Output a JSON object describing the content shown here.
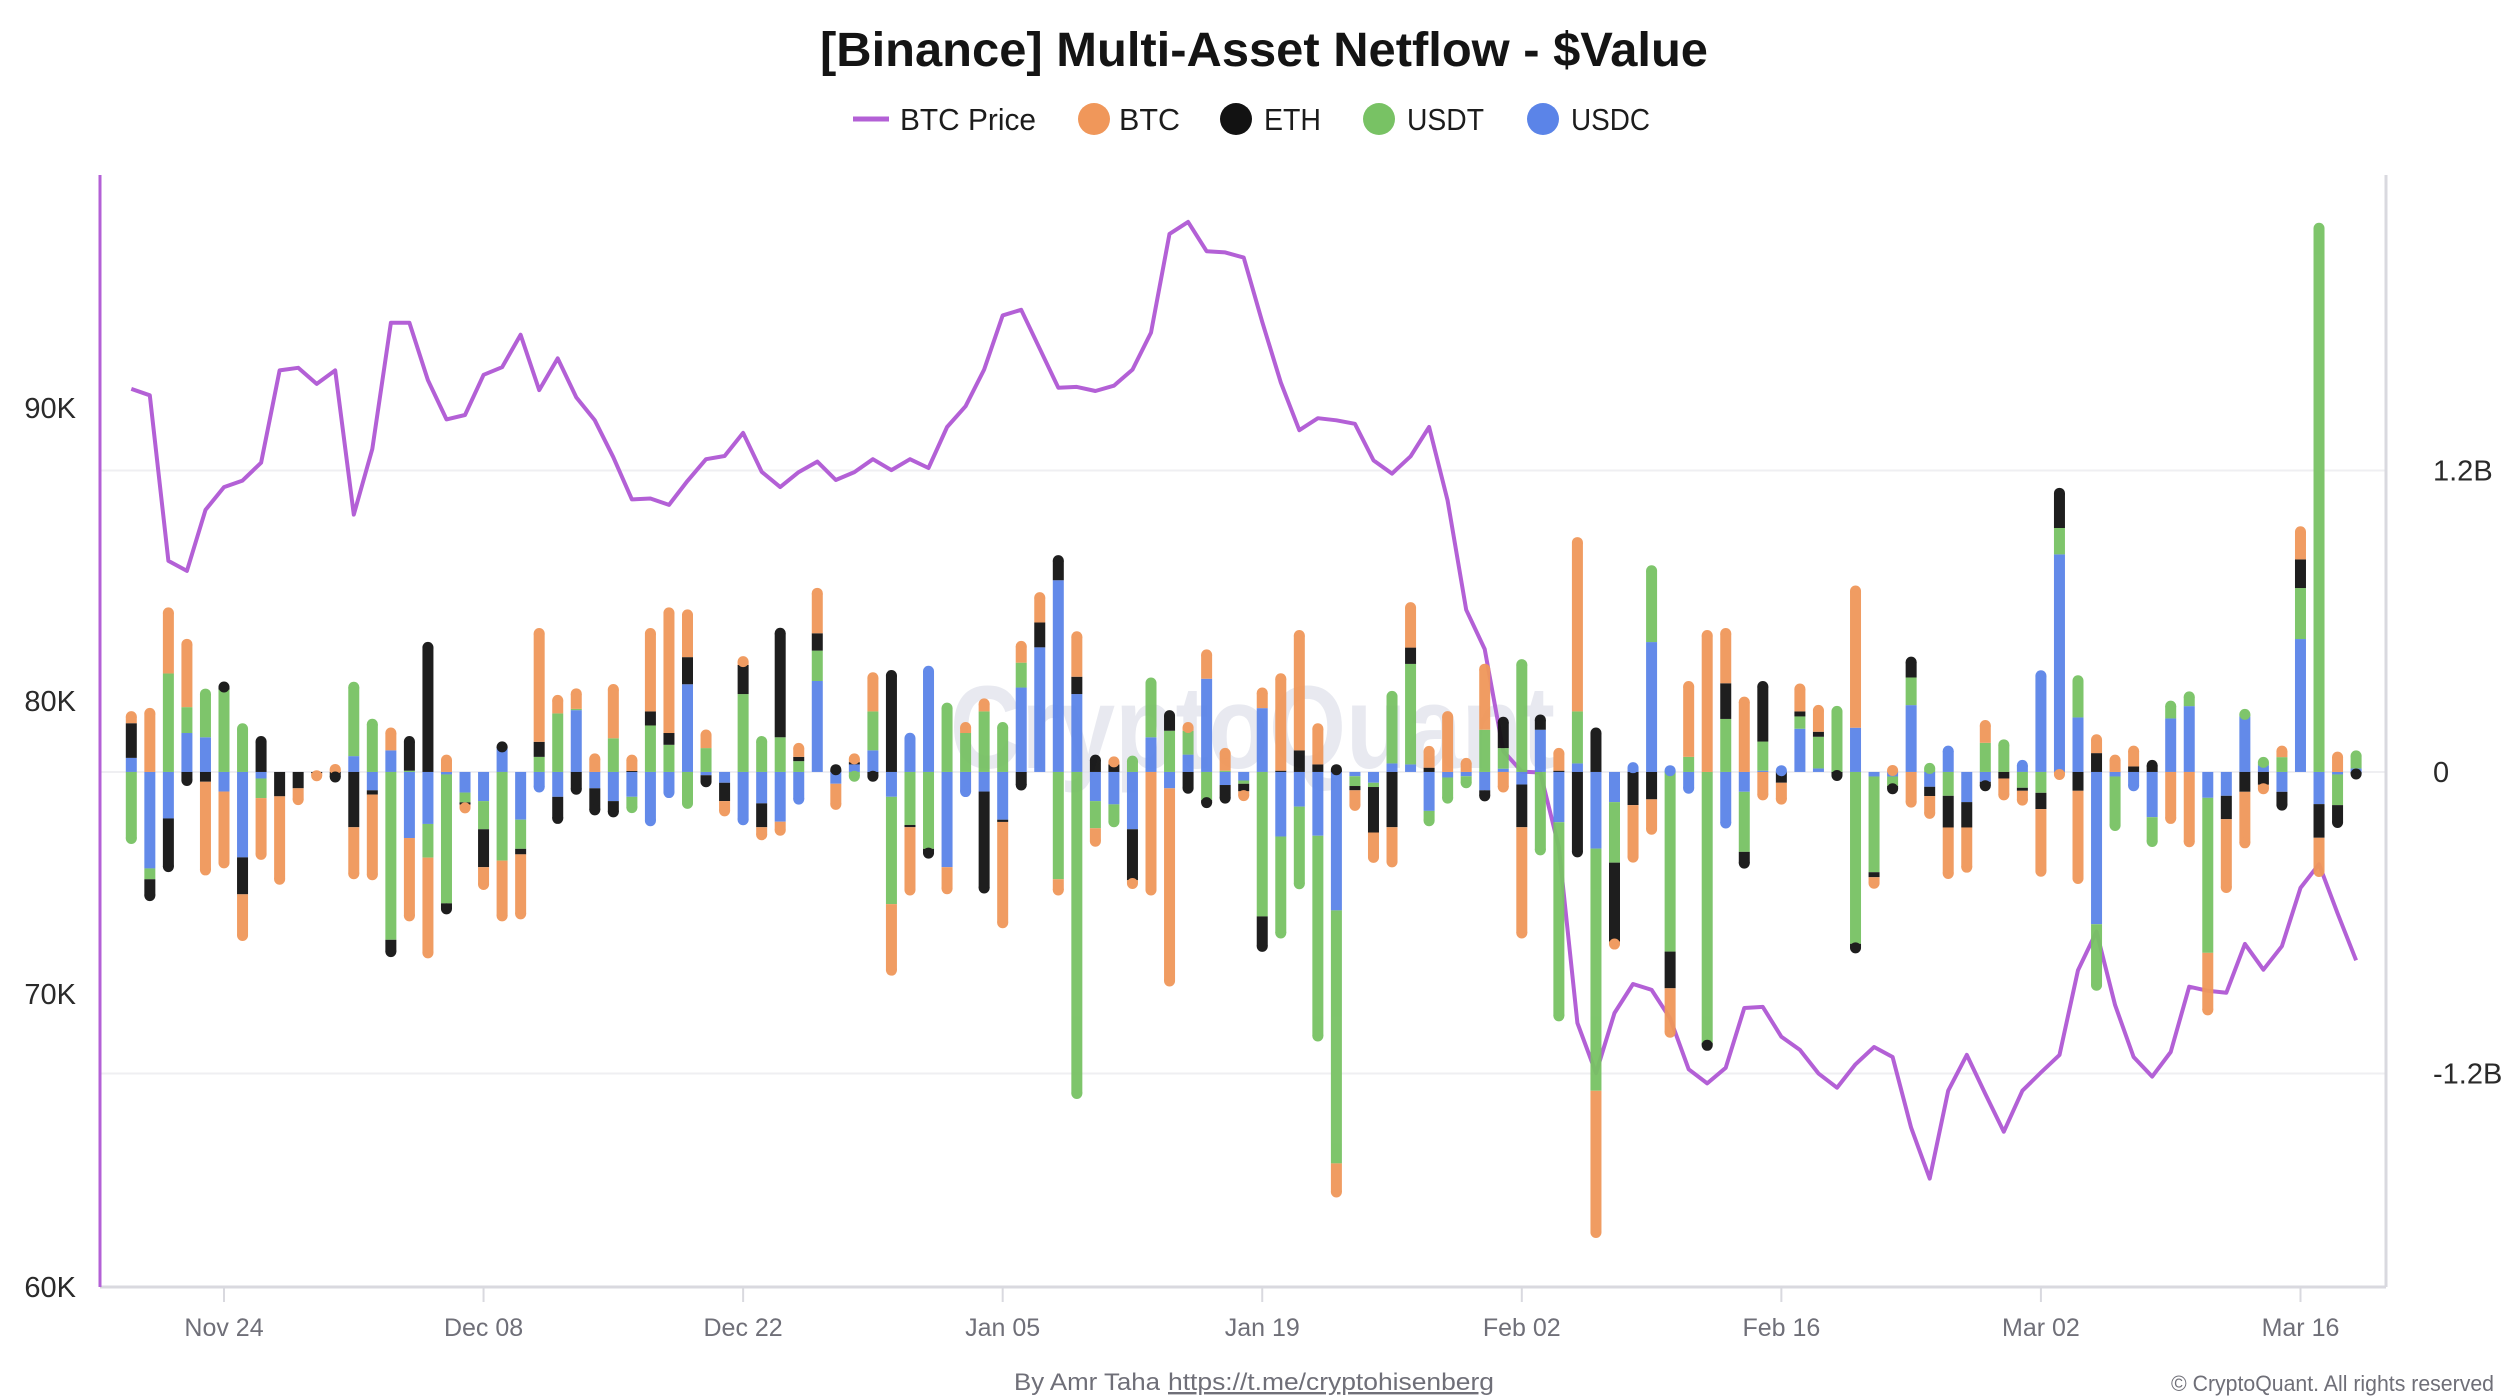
{
  "footer": {
    "author": "By Amr Taha",
    "link": "https://t.me/cryptohisenberg",
    "copyright": "© CryptoQuant. All rights reserved"
  },
  "watermark": "CryptoQuant",
  "chart_data": {
    "type": "bar",
    "subtype": "stacked-bar-with-line",
    "title": "[Binance] Multi-Asset Netflow - $Value",
    "legend_position": "top-center",
    "grid": true,
    "x_unit": "day index (daily data, first tick Nov 24 = 5)",
    "x": [
      0,
      1,
      2,
      3,
      4,
      5,
      6,
      7,
      8,
      9,
      10,
      11,
      12,
      13,
      14,
      15,
      16,
      17,
      18,
      19,
      20,
      21,
      22,
      23,
      24,
      25,
      26,
      27,
      28,
      29,
      30,
      31,
      32,
      33,
      34,
      35,
      36,
      37,
      38,
      39,
      40,
      41,
      42,
      43,
      44,
      45,
      46,
      47,
      48,
      49,
      50,
      51,
      52,
      53,
      54,
      55,
      56,
      57,
      58,
      59,
      60,
      61,
      62,
      63,
      64,
      65,
      66,
      67,
      68,
      69,
      70,
      71,
      72,
      73,
      74,
      75,
      76,
      77,
      78,
      79,
      80,
      81,
      82,
      83,
      84,
      85,
      86,
      87,
      88,
      89,
      90,
      91,
      92,
      93,
      94,
      95,
      96,
      97,
      98,
      99,
      100,
      101,
      102,
      103,
      104,
      105,
      106,
      107,
      108,
      109,
      110,
      111,
      112,
      113,
      114,
      115,
      116,
      117,
      118,
      119,
      120
    ],
    "x_ticks": [
      {
        "label": "Nov 24",
        "x": 5
      },
      {
        "label": "Dec 08",
        "x": 19
      },
      {
        "label": "Dec 22",
        "x": 33
      },
      {
        "label": "Jan 05",
        "x": 47
      },
      {
        "label": "Jan 19",
        "x": 61
      },
      {
        "label": "Feb 02",
        "x": 75
      },
      {
        "label": "Feb 16",
        "x": 89
      },
      {
        "label": "Mar 02",
        "x": 103
      },
      {
        "label": "Mar 16",
        "x": 117
      }
    ],
    "y_left": {
      "series": "BTC Price",
      "range": [
        60000,
        97950
      ],
      "ticks": [
        {
          "label": "90K",
          "value": 90000
        },
        {
          "label": "80K",
          "value": 80000
        },
        {
          "label": "70K",
          "value": 70000
        },
        {
          "label": "60K",
          "value": 60000
        }
      ]
    },
    "y_right": {
      "unit": "USD billions",
      "range": [
        -2.05,
        2.376
      ],
      "ticks": [
        {
          "label": "1.2B",
          "value": 1.2
        },
        {
          "label": "0",
          "value": 0
        },
        {
          "label": "-1.2B",
          "value": -1.2
        }
      ]
    },
    "series": [
      {
        "name": "BTC Price",
        "type": "line",
        "axis": "left",
        "color": "#b360d6",
        "values": [
          90650,
          90430,
          84780,
          84440,
          86520,
          87300,
          87520,
          88130,
          91280,
          91370,
          90820,
          91280,
          86360,
          88600,
          92910,
          92910,
          90950,
          89610,
          89760,
          91130,
          91390,
          92500,
          90610,
          91690,
          90360,
          89580,
          88320,
          86880,
          86910,
          86690,
          87510,
          88250,
          88360,
          89150,
          87820,
          87300,
          87810,
          88170,
          87540,
          87810,
          88250,
          87880,
          88250,
          87950,
          89350,
          90060,
          91310,
          93160,
          93350,
          92020,
          90690,
          90720,
          90580,
          90760,
          91310,
          92570,
          95940,
          96350,
          95350,
          95310,
          95130,
          92940,
          90870,
          89240,
          89650,
          89580,
          89460,
          88210,
          87760,
          88350,
          89350,
          86840,
          83110,
          81770,
          78290,
          77590,
          77560,
          75000,
          69010,
          67300,
          69350,
          70340,
          70140,
          69170,
          67430,
          66950,
          67480,
          69520,
          69560,
          68540,
          68090,
          67290,
          66800,
          67600,
          68190,
          67850,
          65440,
          63700,
          66700,
          67920,
          66590,
          65300,
          66700,
          67320,
          67920,
          70810,
          72130,
          69620,
          67850,
          67180,
          68020,
          70250,
          70110,
          70040,
          71710,
          70830,
          71630,
          73620,
          74430,
          72750,
          71150
        ]
      },
      {
        "name": "BTC",
        "type": "stacked-bar",
        "axis": "right",
        "color": "#f0975a",
        "values": [
          0.026,
          0.233,
          0.241,
          0.25,
          -0.351,
          -0.284,
          -0.164,
          -0.224,
          -0.33,
          -0.045,
          -0.01,
          0.01,
          -0.185,
          -0.319,
          0.069,
          -0.31,
          -0.379,
          0.047,
          -0.013,
          -0.069,
          -0.22,
          -0.237,
          0.431,
          0.052,
          0.06,
          0.052,
          0.194,
          0.043,
          0.31,
          0.478,
          0.168,
          0.052,
          -0.039,
          0.013,
          -0.03,
          -0.034,
          0.034,
          0.159,
          -0.082,
          0.013,
          0.134,
          -0.263,
          -0.25,
          0,
          -0.086,
          0.022,
          0.03,
          -0.401,
          0.065,
          0.099,
          -0.043,
          0.159,
          -0.052,
          0.01,
          -0.013,
          -0.47,
          -0.767,
          0.013,
          0.095,
          0.069,
          -0.017,
          0.06,
          0.366,
          0.457,
          0.142,
          -0.114,
          -0.06,
          -0.099,
          -0.138,
          0.159,
          0.065,
          0.22,
          0.034,
          0.241,
          -0.06,
          -0.421,
          0,
          0.069,
          0.672,
          -0.564,
          -0.01,
          -0.207,
          -0.119,
          -0.175,
          0.28,
          0.543,
          0.198,
          0.278,
          -0.091,
          -0.065,
          0.089,
          0.085,
          0,
          0.544,
          -0.024,
          0.006,
          -0.12,
          -0.069,
          -0.183,
          -0.158,
          0.069,
          -0.065,
          -0.037,
          -0.247,
          -0.01,
          -0.349,
          0.053,
          0.047,
          0.061,
          0,
          -0.185,
          -0.278,
          -0.227,
          -0.272,
          -0.203,
          -0.016,
          0.024,
          0.11,
          -0.134,
          0.059,
          0
        ]
      },
      {
        "name": "ETH",
        "type": "stacked-bar",
        "axis": "right",
        "color": "#121212",
        "values": [
          0.138,
          -0.065,
          -0.192,
          -0.034,
          -0.039,
          0.01,
          -0.147,
          0.121,
          -0.097,
          -0.065,
          -0.005,
          -0.02,
          -0.22,
          -0.017,
          -0.047,
          0.116,
          0.496,
          -0.022,
          -0.009,
          -0.151,
          0.005,
          -0.022,
          0.06,
          -0.086,
          -0.069,
          -0.086,
          -0.043,
          0.004,
          0.056,
          0.047,
          0.108,
          -0.026,
          -0.073,
          0.116,
          -0.095,
          0.414,
          0.017,
          0.069,
          0.009,
          0.009,
          -0.017,
          0.384,
          -0.009,
          -0.017,
          0,
          0,
          -0.384,
          -0.009,
          -0.052,
          0.099,
          0.078,
          0.069,
          0.047,
          0.03,
          -0.203,
          0,
          0.06,
          -0.065,
          -0.01,
          -0.052,
          -0.03,
          -0.119,
          0.005,
          0.086,
          0.03,
          0.009,
          -0.017,
          -0.181,
          -0.22,
          0.065,
          0.017,
          0,
          0,
          -0.022,
          0.103,
          -0.17,
          0.039,
          0.005,
          -0.318,
          0.155,
          -0.314,
          -0.132,
          -0.109,
          -0.146,
          0,
          -0.01,
          0.142,
          -0.045,
          0.219,
          -0.043,
          0.02,
          0.02,
          -0.014,
          -0.016,
          -0.02,
          -0.012,
          0.061,
          -0.037,
          -0.126,
          -0.101,
          -0.016,
          -0.026,
          -0.012,
          -0.065,
          0.138,
          -0.075,
          0.075,
          0,
          0.022,
          0.026,
          0,
          0,
          0,
          -0.093,
          -0.079,
          -0.051,
          -0.053,
          0.114,
          -0.134,
          -0.069,
          -0.008
        ]
      },
      {
        "name": "USDT",
        "type": "stacked-bar",
        "axis": "right",
        "color": "#78c264",
        "values": [
          -0.265,
          -0.043,
          0.392,
          0.103,
          0.172,
          0.328,
          0.172,
          -0.078,
          0,
          0,
          0,
          0,
          0.274,
          0.19,
          -0.668,
          0.005,
          -0.134,
          -0.513,
          -0.039,
          -0.112,
          -0.353,
          -0.116,
          0.06,
          0.233,
          0.005,
          0,
          0.134,
          -0.043,
          0.185,
          0.108,
          -0.125,
          0.095,
          0,
          0.31,
          0.121,
          0.138,
          0.043,
          0.121,
          0,
          -0.017,
          0.155,
          -0.427,
          -0.211,
          -0.306,
          0.254,
          0.155,
          0.241,
          0.177,
          0.099,
          0,
          -0.427,
          -1.28,
          -0.108,
          -0.069,
          0.043,
          0.216,
          0.164,
          0.095,
          -0.112,
          0.005,
          -0.013,
          -0.575,
          -0.384,
          -0.307,
          -0.797,
          -1.007,
          -0.039,
          -0.017,
          0.267,
          0.4,
          -0.039,
          -0.082,
          -0.026,
          0.168,
          0.082,
          0.427,
          -0.31,
          -0.771,
          0.207,
          -0.964,
          -0.241,
          0,
          0.284,
          -0.715,
          0.06,
          -1.078,
          0.211,
          -0.239,
          0.116,
          0,
          0.049,
          0.126,
          0.241,
          -0.684,
          -0.381,
          -0.037,
          0.11,
          0.014,
          -0.095,
          0,
          0.116,
          0.108,
          -0.063,
          -0.083,
          0.105,
          0.146,
          -0.243,
          -0.195,
          0,
          -0.097,
          0.049,
          0.037,
          -0.617,
          0,
          0.008,
          0.012,
          0.059,
          0.203,
          2.164,
          -0.122,
          0.05
        ]
      },
      {
        "name": "USDC",
        "type": "stacked-bar",
        "axis": "right",
        "color": "#5b84e8",
        "values": [
          0.056,
          -0.384,
          -0.185,
          0.155,
          0.138,
          -0.078,
          -0.34,
          -0.026,
          0,
          0,
          0,
          0,
          0.063,
          -0.073,
          0.086,
          -0.263,
          -0.207,
          -0.01,
          -0.082,
          -0.116,
          0.095,
          -0.19,
          -0.06,
          -0.099,
          0.246,
          -0.065,
          -0.116,
          -0.099,
          -0.194,
          -0.082,
          0.349,
          -0.013,
          -0.043,
          -0.19,
          -0.125,
          -0.198,
          -0.108,
          0.362,
          -0.047,
          0.03,
          0.086,
          -0.099,
          0.134,
          0.401,
          -0.379,
          -0.078,
          -0.078,
          -0.19,
          0.336,
          0.496,
          0.763,
          0.31,
          -0.116,
          -0.129,
          -0.228,
          0.138,
          -0.065,
          0.069,
          0.371,
          -0.052,
          -0.034,
          0.254,
          -0.257,
          -0.138,
          -0.254,
          -0.551,
          -0.017,
          -0.043,
          0.034,
          0.03,
          -0.155,
          -0.022,
          -0.017,
          -0.073,
          0.013,
          -0.05,
          0.168,
          -0.2,
          0.034,
          -0.305,
          -0.12,
          0.017,
          0.517,
          0.005,
          -0.065,
          0,
          -0.203,
          -0.079,
          0.005,
          0.005,
          0.172,
          0.014,
          0,
          0.176,
          -0.018,
          -0.018,
          0.266,
          -0.059,
          0.083,
          -0.12,
          -0.039,
          0,
          0.026,
          0.383,
          0.866,
          0.217,
          -0.606,
          -0.018,
          -0.055,
          -0.18,
          0.213,
          0.262,
          -0.103,
          -0.095,
          0.221,
          0.026,
          -0.079,
          0.529,
          -0.128,
          -0.01,
          0.014
        ]
      }
    ]
  }
}
